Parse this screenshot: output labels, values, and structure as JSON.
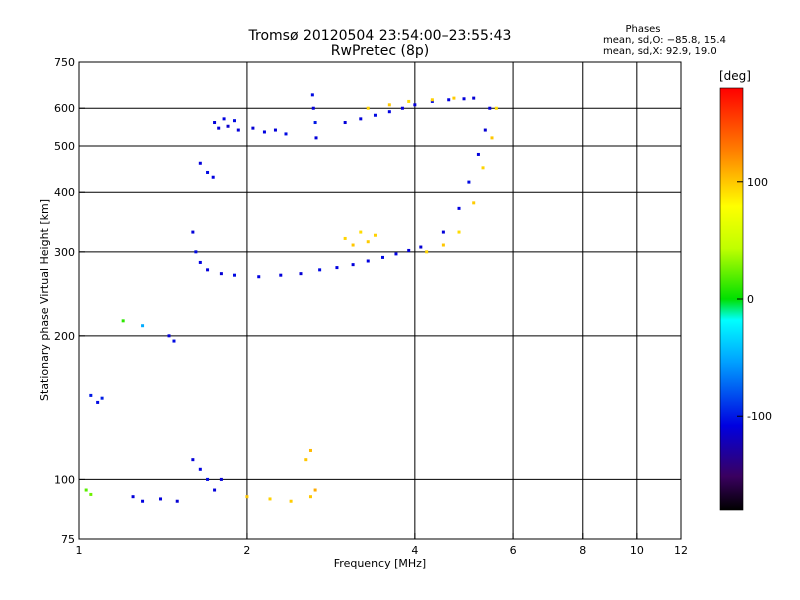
{
  "chart_data": {
    "type": "scatter",
    "title": "Tromsø 20120504 23:54:00–23:55:43",
    "subtitle": "RwPretec (8p)",
    "xlabel": "Frequency [MHz]",
    "ylabel": "Stationary phase Virtual Height [km]",
    "x_scale": "log",
    "y_scale": "log",
    "xlim": [
      1,
      12
    ],
    "ylim": [
      75,
      750
    ],
    "x_ticks": [
      1,
      2,
      4,
      6,
      8,
      10,
      12
    ],
    "y_ticks": [
      75,
      100,
      200,
      300,
      400,
      500,
      600,
      750
    ],
    "x_gridlines": [
      2,
      4,
      6,
      8,
      10
    ],
    "y_gridlines": [
      100,
      200,
      300,
      400,
      500,
      600
    ],
    "grid": true,
    "stats": {
      "title": "Phases",
      "line_o": "mean, sd,O: −85.8, 15.4",
      "line_x": "mean, sd,X:  92.9, 19.0"
    },
    "colorbar": {
      "label": "[deg]",
      "range": [
        -180,
        180
      ],
      "ticks": [
        100,
        0,
        -100
      ],
      "colormap": "rainbow"
    },
    "series": [
      {
        "values": [
          [
            1.75,
            560,
            -110
          ],
          [
            1.78,
            545,
            -112
          ],
          [
            1.82,
            570,
            -108
          ],
          [
            1.85,
            550,
            -115
          ],
          [
            1.9,
            565,
            -105
          ],
          [
            1.93,
            540,
            -110
          ],
          [
            2.05,
            545,
            -112
          ],
          [
            2.15,
            535,
            -108
          ],
          [
            2.25,
            540,
            -110
          ],
          [
            2.35,
            530,
            -105
          ],
          [
            2.62,
            640,
            -105
          ],
          [
            2.63,
            600,
            -110
          ],
          [
            2.65,
            560,
            -100
          ],
          [
            2.66,
            520,
            -110
          ],
          [
            3.0,
            560,
            -110
          ],
          [
            3.2,
            570,
            -110
          ],
          [
            3.4,
            580,
            -105
          ],
          [
            3.6,
            590,
            -108
          ],
          [
            3.8,
            600,
            -110
          ],
          [
            4.0,
            610,
            -112
          ],
          [
            4.3,
            620,
            -105
          ],
          [
            4.6,
            625,
            -108
          ],
          [
            4.9,
            628,
            -110
          ],
          [
            5.1,
            630,
            -112
          ],
          [
            1.65,
            460,
            -110
          ],
          [
            1.7,
            440,
            -105
          ],
          [
            1.74,
            430,
            -108
          ],
          [
            1.6,
            330,
            -110
          ],
          [
            1.62,
            300,
            -105
          ],
          [
            1.65,
            285,
            -108
          ],
          [
            1.7,
            275,
            -110
          ],
          [
            1.8,
            270,
            -112
          ],
          [
            1.9,
            268,
            -105
          ],
          [
            2.1,
            266,
            -108
          ],
          [
            2.3,
            268,
            -110
          ],
          [
            2.5,
            270,
            -112
          ],
          [
            2.7,
            275,
            -105
          ],
          [
            2.9,
            278,
            -108
          ],
          [
            3.1,
            282,
            -110
          ],
          [
            3.3,
            287,
            -108
          ],
          [
            3.5,
            292,
            -105
          ],
          [
            3.7,
            297,
            -108
          ],
          [
            3.9,
            302,
            -110
          ],
          [
            4.1,
            307,
            -112
          ],
          [
            4.5,
            330,
            -110
          ],
          [
            4.8,
            370,
            -108
          ],
          [
            5.0,
            420,
            -105
          ],
          [
            5.2,
            480,
            -110
          ],
          [
            5.35,
            540,
            -112
          ],
          [
            5.45,
            600,
            -110
          ],
          [
            1.45,
            200,
            -110
          ],
          [
            1.48,
            195,
            -105
          ],
          [
            1.05,
            150,
            -100
          ],
          [
            1.08,
            145,
            -105
          ],
          [
            1.1,
            148,
            -98
          ],
          [
            1.6,
            110,
            -110
          ],
          [
            1.65,
            105,
            -108
          ],
          [
            1.7,
            100,
            -105
          ],
          [
            1.75,
            95,
            -110
          ],
          [
            1.8,
            100,
            -112
          ],
          [
            1.25,
            92,
            -110
          ],
          [
            1.3,
            90,
            -108
          ],
          [
            1.4,
            91,
            -110
          ],
          [
            1.5,
            90,
            -112
          ],
          [
            2.55,
            110,
            100
          ],
          [
            2.6,
            115,
            105
          ],
          [
            2.65,
            95,
            110
          ],
          [
            3.0,
            320,
            95
          ],
          [
            3.1,
            310,
            100
          ],
          [
            3.2,
            330,
            92
          ],
          [
            3.3,
            315,
            98
          ],
          [
            3.4,
            325,
            96
          ],
          [
            4.2,
            300,
            95
          ],
          [
            4.5,
            310,
            100
          ],
          [
            4.8,
            330,
            92
          ],
          [
            5.1,
            380,
            98
          ],
          [
            5.3,
            450,
            95
          ],
          [
            5.5,
            520,
            100
          ],
          [
            5.6,
            600,
            92
          ],
          [
            3.3,
            600,
            95
          ],
          [
            3.6,
            610,
            100
          ],
          [
            3.9,
            620,
            92
          ],
          [
            4.3,
            625,
            96
          ],
          [
            4.7,
            630,
            98
          ],
          [
            2.0,
            92,
            100
          ],
          [
            2.2,
            91,
            96
          ],
          [
            2.4,
            90,
            98
          ],
          [
            2.6,
            92,
            100
          ],
          [
            1.03,
            95,
            20
          ],
          [
            1.05,
            93,
            25
          ],
          [
            1.2,
            215,
            10
          ],
          [
            1.3,
            210,
            -50
          ]
        ]
      }
    ]
  }
}
